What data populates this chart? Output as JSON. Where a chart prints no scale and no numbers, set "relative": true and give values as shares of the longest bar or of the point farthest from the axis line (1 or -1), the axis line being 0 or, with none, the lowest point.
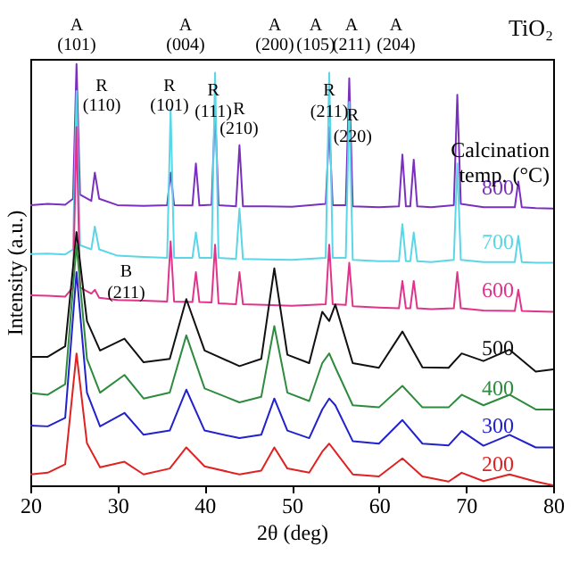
{
  "chart_data": {
    "type": "line",
    "title": "TiO₂",
    "xlabel": "2θ (deg)",
    "ylabel": "Intensity (a.u.)",
    "legend_title": "Calcination temp. (°C)",
    "relative": true,
    "xlim": [
      20,
      80
    ],
    "xticks": [
      20,
      30,
      40,
      50,
      60,
      70,
      80
    ],
    "line_style": "solid",
    "annotations": [
      "A (101)",
      "A (004)",
      "A (200)",
      "A (105)",
      "A (211)",
      "A (204)",
      "R (110)",
      "R (101)",
      {
        "text": "R (111)",
        "x": 41.0,
        "y": 0.96
      },
      "R (210)",
      {
        "text": "R (211)",
        "x": 54.3,
        "y": 0.96
      },
      {
        "text": "R (220)",
        "x": 57.0,
        "y": 0.9
      },
      {
        "text": "B (211)",
        "x": 31.0,
        "y": 0.53
      }
    ],
    "series": [
      {
        "name": "800",
        "color": "#7b2fbf",
        "x": [
          20,
          22,
          24,
          24.9,
          25.3,
          25.7,
          27,
          27.4,
          27.9,
          30,
          33,
          35.7,
          36.1,
          36.5,
          38.6,
          39,
          39.4,
          40.8,
          41.2,
          41.6,
          43.6,
          44,
          44.4,
          47,
          50,
          53.9,
          54.3,
          54.7,
          56.2,
          56.6,
          57,
          60,
          62.3,
          62.7,
          63.1,
          63.6,
          64,
          64.4,
          66,
          68.6,
          69,
          69.4,
          72,
          75.6,
          76,
          76.4,
          78,
          80
        ],
        "values": [
          0.665,
          0.668,
          0.666,
          0.68,
          1.0,
          0.69,
          0.675,
          0.742,
          0.68,
          0.665,
          0.663,
          0.665,
          0.742,
          0.665,
          0.664,
          0.764,
          0.664,
          0.666,
          0.893,
          0.665,
          0.662,
          0.807,
          0.662,
          0.662,
          0.661,
          0.668,
          0.85,
          0.665,
          0.665,
          0.966,
          0.662,
          0.66,
          0.662,
          0.785,
          0.662,
          0.662,
          0.773,
          0.662,
          0.66,
          0.665,
          0.927,
          0.668,
          0.66,
          0.66,
          0.721,
          0.66,
          0.658,
          0.657
        ]
      },
      {
        "name": "700",
        "color": "#5bd6e6",
        "x": [
          20,
          22,
          24,
          24.9,
          25.3,
          25.7,
          27,
          27.4,
          27.9,
          30,
          33,
          35.7,
          36.1,
          36.5,
          38.6,
          39,
          39.4,
          40.8,
          41.2,
          41.6,
          43.6,
          44,
          44.4,
          47,
          50,
          53.9,
          54.3,
          54.7,
          56.2,
          56.6,
          57,
          60,
          62.3,
          62.7,
          63.1,
          63.6,
          64,
          64.4,
          66,
          68.6,
          69,
          69.4,
          72,
          75.6,
          76,
          76.4,
          78,
          80
        ],
        "values": [
          0.549,
          0.55,
          0.548,
          0.56,
          0.936,
          0.57,
          0.56,
          0.614,
          0.56,
          0.545,
          0.542,
          0.54,
          0.893,
          0.54,
          0.54,
          0.6,
          0.54,
          0.54,
          0.979,
          0.54,
          0.537,
          0.657,
          0.537,
          0.536,
          0.535,
          0.54,
          0.979,
          0.54,
          0.54,
          0.91,
          0.535,
          0.532,
          0.532,
          0.62,
          0.532,
          0.532,
          0.6,
          0.532,
          0.53,
          0.535,
          0.764,
          0.535,
          0.53,
          0.53,
          0.592,
          0.53,
          0.528,
          0.528
        ]
      },
      {
        "name": "600",
        "color": "#e0348c",
        "x": [
          20,
          22,
          24,
          24.9,
          25.3,
          25.7,
          27,
          27.4,
          27.9,
          30,
          33,
          35.7,
          36.1,
          36.5,
          38.6,
          39,
          39.4,
          40.8,
          41.2,
          41.6,
          43.6,
          44,
          44.4,
          47,
          50,
          53.9,
          54.3,
          54.7,
          56.2,
          56.6,
          57,
          60,
          62.3,
          62.7,
          63.1,
          63.6,
          64,
          64.4,
          66,
          68.6,
          69,
          69.4,
          72,
          75.6,
          76,
          76.4,
          78,
          80
        ],
        "values": [
          0.451,
          0.45,
          0.448,
          0.47,
          0.85,
          0.47,
          0.455,
          0.464,
          0.445,
          0.44,
          0.438,
          0.436,
          0.579,
          0.436,
          0.435,
          0.506,
          0.435,
          0.434,
          0.571,
          0.432,
          0.43,
          0.506,
          0.43,
          0.428,
          0.426,
          0.43,
          0.571,
          0.43,
          0.428,
          0.528,
          0.425,
          0.422,
          0.42,
          0.485,
          0.42,
          0.42,
          0.485,
          0.42,
          0.418,
          0.42,
          0.506,
          0.42,
          0.415,
          0.414,
          0.464,
          0.414,
          0.413,
          0.412
        ]
      },
      {
        "name": "500",
        "color": "#111111",
        "x": [
          20,
          22,
          24,
          25.3,
          26.5,
          28,
          30.8,
          33,
          36,
          37.9,
          40,
          44,
          46.5,
          48,
          49.5,
          52,
          53.5,
          54.3,
          55,
          57,
          60,
          62.7,
          65,
          68,
          69.5,
          72,
          75,
          78,
          80
        ],
        "values": [
          0.305,
          0.305,
          0.33,
          0.601,
          0.39,
          0.32,
          0.348,
          0.292,
          0.3,
          0.442,
          0.32,
          0.283,
          0.3,
          0.515,
          0.31,
          0.29,
          0.412,
          0.39,
          0.429,
          0.29,
          0.279,
          0.365,
          0.28,
          0.279,
          0.313,
          0.295,
          0.322,
          0.27,
          0.275
        ]
      },
      {
        "name": "400",
        "color": "#2e8b3e",
        "x": [
          20,
          22,
          24,
          25.3,
          26.5,
          28,
          30.8,
          33,
          36,
          37.9,
          40,
          44,
          46.5,
          48,
          49.5,
          52,
          53.5,
          54.3,
          55,
          57,
          60,
          62.7,
          65,
          68,
          69.5,
          72,
          75,
          78,
          80
        ],
        "values": [
          0.219,
          0.215,
          0.24,
          0.571,
          0.3,
          0.22,
          0.262,
          0.206,
          0.22,
          0.356,
          0.23,
          0.197,
          0.21,
          0.378,
          0.22,
          0.2,
          0.29,
          0.313,
          0.28,
          0.19,
          0.185,
          0.236,
          0.185,
          0.185,
          0.215,
          0.19,
          0.215,
          0.18,
          0.18
        ]
      },
      {
        "name": "300",
        "color": "#2222cc",
        "x": [
          20,
          22,
          24,
          25.3,
          26.5,
          28,
          30.8,
          33,
          36,
          37.9,
          40,
          44,
          46.5,
          48,
          49.5,
          52,
          53.5,
          54.3,
          55,
          57,
          60,
          62.7,
          65,
          68,
          69.5,
          72,
          75,
          78,
          80
        ],
        "values": [
          0.142,
          0.14,
          0.16,
          0.506,
          0.22,
          0.14,
          0.172,
          0.12,
          0.13,
          0.227,
          0.13,
          0.112,
          0.12,
          0.206,
          0.13,
          0.112,
          0.18,
          0.206,
          0.19,
          0.105,
          0.099,
          0.155,
          0.099,
          0.095,
          0.129,
          0.094,
          0.12,
          0.09,
          0.09
        ]
      },
      {
        "name": "200",
        "color": "#e02222",
        "x": [
          20,
          22,
          24,
          25.3,
          26.5,
          28,
          30.8,
          33,
          36,
          37.9,
          40,
          44,
          46.5,
          48,
          49.5,
          52,
          53.5,
          54.3,
          55,
          57,
          60,
          62.7,
          65,
          68,
          69.5,
          72,
          75,
          78,
          80
        ],
        "values": [
          0.026,
          0.03,
          0.05,
          0.313,
          0.1,
          0.043,
          0.056,
          0.026,
          0.04,
          0.09,
          0.045,
          0.026,
          0.035,
          0.09,
          0.04,
          0.03,
          0.08,
          0.099,
          0.08,
          0.026,
          0.021,
          0.064,
          0.021,
          0.009,
          0.03,
          0.01,
          0.026,
          0.009,
          0.0
        ]
      }
    ]
  }
}
